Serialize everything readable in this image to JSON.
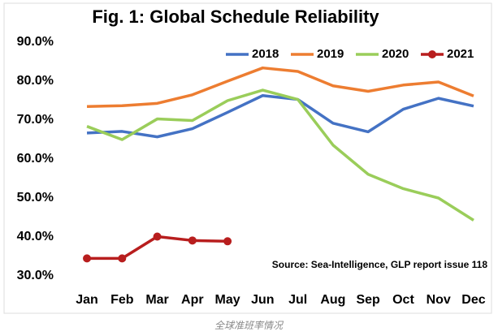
{
  "chart_data": {
    "type": "line",
    "title": "Fig. 1: Global Schedule Reliability",
    "categories": [
      "Jan",
      "Feb",
      "Mar",
      "Apr",
      "May",
      "Jun",
      "Jul",
      "Aug",
      "Sep",
      "Oct",
      "Nov",
      "Dec"
    ],
    "series": [
      {
        "name": "2018",
        "color": "#4472c4",
        "values": [
          66.7,
          67.1,
          65.7,
          67.8,
          72.0,
          76.3,
          75.3,
          69.2,
          67.0,
          72.8,
          75.6,
          73.6
        ]
      },
      {
        "name": "2019",
        "color": "#ed7d31",
        "values": [
          73.5,
          73.7,
          74.3,
          76.5,
          80.0,
          83.4,
          82.5,
          78.8,
          77.4,
          79.0,
          79.8,
          76.2
        ]
      },
      {
        "name": "2020",
        "color": "#9acd5a",
        "values": [
          68.4,
          65.0,
          70.3,
          69.9,
          75.0,
          77.7,
          75.3,
          63.6,
          56.1,
          52.4,
          50.0,
          44.3
        ]
      },
      {
        "name": "2021",
        "color": "#b81e1e",
        "markers": true,
        "values": [
          34.5,
          34.5,
          40.1,
          39.1,
          38.9,
          null,
          null,
          null,
          null,
          null,
          null,
          null
        ]
      }
    ],
    "ylim": [
      30,
      90
    ],
    "yticks": [
      {
        "value": 30,
        "label": "30.0%"
      },
      {
        "value": 40,
        "label": "40.0%"
      },
      {
        "value": 50,
        "label": "50.0%"
      },
      {
        "value": 60,
        "label": "60.0%"
      },
      {
        "value": 70,
        "label": "70.0%"
      },
      {
        "value": 80,
        "label": "80.0%"
      },
      {
        "value": 90,
        "label": "90.0%"
      }
    ],
    "grid": false,
    "legend": "top-right",
    "annotation": "Source: Sea-Intelligence, GLP report issue 118",
    "caption": "全球准班率情况"
  }
}
